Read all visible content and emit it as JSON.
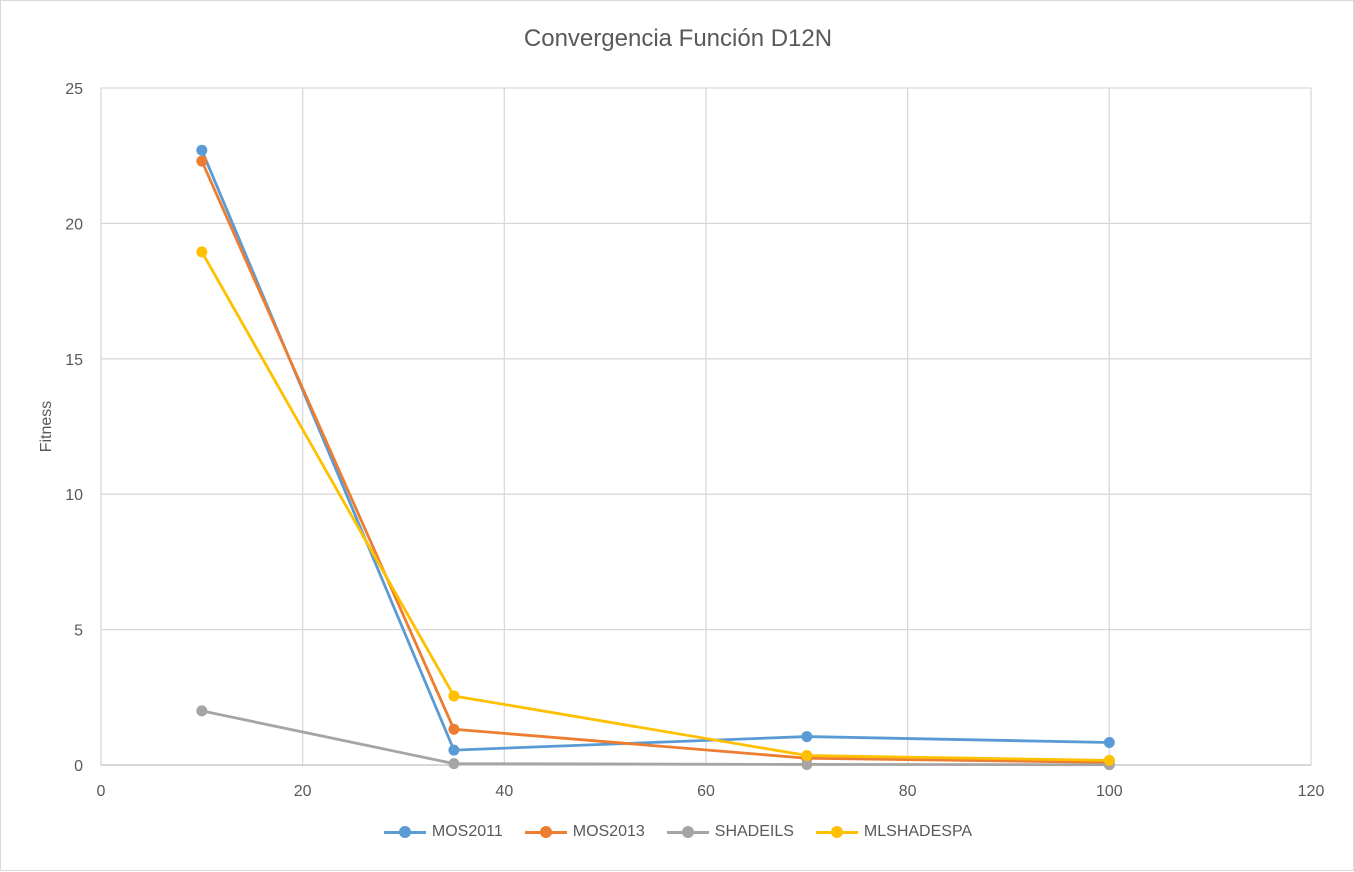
{
  "chart_data": {
    "type": "line",
    "title": "Convergencia Función D12N",
    "xlabel": "",
    "ylabel": "Fitness",
    "xlim": [
      0,
      120
    ],
    "ylim": [
      0,
      25
    ],
    "xticks": [
      "0",
      "20",
      "40",
      "60",
      "80",
      "100",
      "120"
    ],
    "yticks": [
      "0",
      "5",
      "10",
      "15",
      "20",
      "25"
    ],
    "grid": true,
    "legend_position": "bottom",
    "series": [
      {
        "name": "MOS2011",
        "color": "#5b9bd5",
        "x": [
          10,
          35,
          70,
          100
        ],
        "y": [
          22.7,
          0.55,
          1.05,
          0.83
        ]
      },
      {
        "name": "MOS2013",
        "color": "#ed7d31",
        "x": [
          10,
          35,
          70,
          100
        ],
        "y": [
          22.3,
          1.32,
          0.25,
          0.1
        ]
      },
      {
        "name": "SHADEILS",
        "color": "#a5a5a5",
        "x": [
          10,
          35,
          70,
          100
        ],
        "y": [
          2.0,
          0.05,
          0.02,
          0.01
        ]
      },
      {
        "name": "MLSHADESPA",
        "color": "#ffc000",
        "x": [
          10,
          35,
          70,
          100
        ],
        "y": [
          18.95,
          2.55,
          0.35,
          0.17
        ]
      }
    ]
  }
}
